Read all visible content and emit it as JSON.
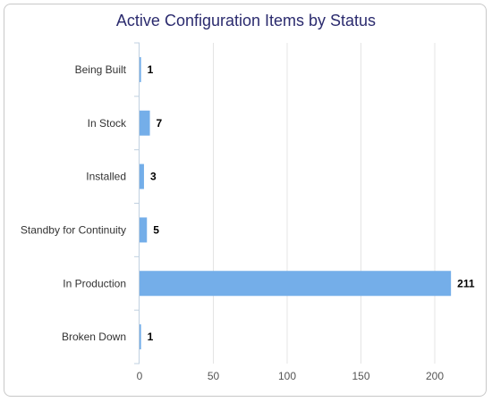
{
  "chart_data": {
    "type": "bar",
    "orientation": "horizontal",
    "title": "Active Configuration Items by Status",
    "xlabel": "",
    "ylabel": "",
    "categories": [
      "Being Built",
      "In Stock",
      "Installed",
      "Standby for Continuity",
      "In Production",
      "Broken Down"
    ],
    "values": [
      1,
      7,
      3,
      5,
      211,
      1
    ],
    "xlim": [
      0,
      220
    ],
    "xticks": [
      0,
      50,
      100,
      150,
      200
    ],
    "grid": true,
    "legend": "none",
    "bar_color": "#74aee9",
    "title_color": "#2b2b6e"
  }
}
